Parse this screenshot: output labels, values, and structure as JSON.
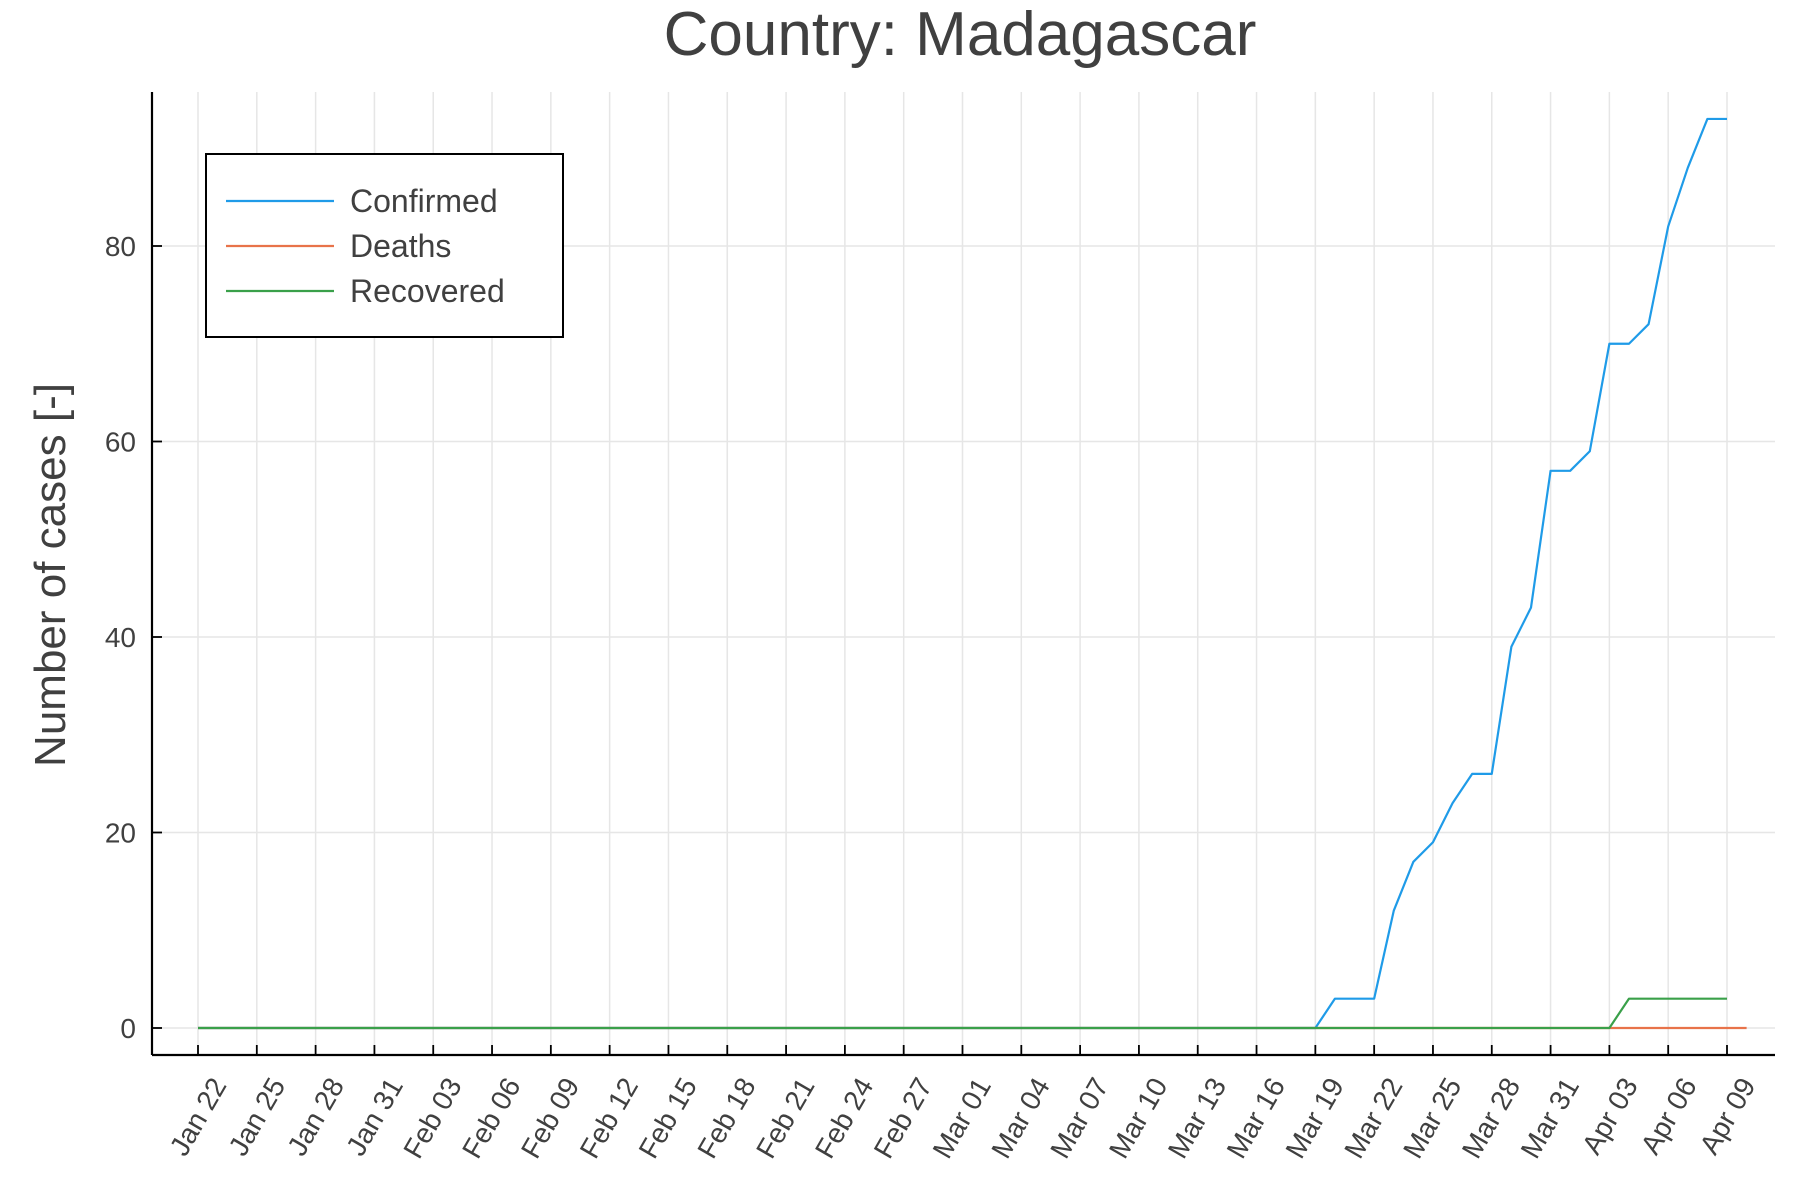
{
  "chart_data": {
    "type": "line",
    "title": "Country: Madagascar",
    "xlabel": "",
    "ylabel": "Number of cases [-]",
    "x_start": "2020-01-22",
    "x_tick_labels": [
      "Jan 22",
      "Jan 25",
      "Jan 28",
      "Jan 31",
      "Feb 03",
      "Feb 06",
      "Feb 09",
      "Feb 12",
      "Feb 15",
      "Feb 18",
      "Feb 21",
      "Feb 24",
      "Feb 27",
      "Mar 01",
      "Mar 04",
      "Mar 07",
      "Mar 10",
      "Mar 13",
      "Mar 16",
      "Mar 19",
      "Mar 22",
      "Mar 25",
      "Mar 28",
      "Mar 31",
      "Apr 03",
      "Apr 06",
      "Apr 09"
    ],
    "y_ticks": [
      0,
      20,
      40,
      60,
      80
    ],
    "ylim": [
      -2.7,
      95.7
    ],
    "grid": true,
    "legend_position": "top-left",
    "series": [
      {
        "name": "Confirmed",
        "color": "#1f9be8",
        "values": [
          0,
          0,
          0,
          0,
          0,
          0,
          0,
          0,
          0,
          0,
          0,
          0,
          0,
          0,
          0,
          0,
          0,
          0,
          0,
          0,
          0,
          0,
          0,
          0,
          0,
          0,
          0,
          0,
          0,
          0,
          0,
          0,
          0,
          0,
          0,
          0,
          0,
          0,
          0,
          0,
          0,
          0,
          0,
          0,
          0,
          0,
          0,
          0,
          0,
          0,
          0,
          0,
          0,
          0,
          0,
          0,
          0,
          0,
          3,
          3,
          3,
          12,
          17,
          19,
          23,
          26,
          26,
          39,
          43,
          57,
          57,
          59,
          70,
          70,
          72,
          82,
          88,
          93,
          93
        ]
      },
      {
        "name": "Deaths",
        "color": "#e8734a",
        "values": [
          0,
          0,
          0,
          0,
          0,
          0,
          0,
          0,
          0,
          0,
          0,
          0,
          0,
          0,
          0,
          0,
          0,
          0,
          0,
          0,
          0,
          0,
          0,
          0,
          0,
          0,
          0,
          0,
          0,
          0,
          0,
          0,
          0,
          0,
          0,
          0,
          0,
          0,
          0,
          0,
          0,
          0,
          0,
          0,
          0,
          0,
          0,
          0,
          0,
          0,
          0,
          0,
          0,
          0,
          0,
          0,
          0,
          0,
          0,
          0,
          0,
          0,
          0,
          0,
          0,
          0,
          0,
          0,
          0,
          0,
          0,
          0,
          0,
          0,
          0,
          0,
          0,
          0,
          0,
          0
        ]
      },
      {
        "name": "Recovered",
        "color": "#3aa04a",
        "values": [
          0,
          0,
          0,
          0,
          0,
          0,
          0,
          0,
          0,
          0,
          0,
          0,
          0,
          0,
          0,
          0,
          0,
          0,
          0,
          0,
          0,
          0,
          0,
          0,
          0,
          0,
          0,
          0,
          0,
          0,
          0,
          0,
          0,
          0,
          0,
          0,
          0,
          0,
          0,
          0,
          0,
          0,
          0,
          0,
          0,
          0,
          0,
          0,
          0,
          0,
          0,
          0,
          0,
          0,
          0,
          0,
          0,
          0,
          0,
          0,
          0,
          0,
          0,
          0,
          0,
          0,
          0,
          0,
          0,
          0,
          0,
          0,
          0,
          3,
          3,
          3,
          3,
          3,
          3
        ]
      }
    ]
  }
}
